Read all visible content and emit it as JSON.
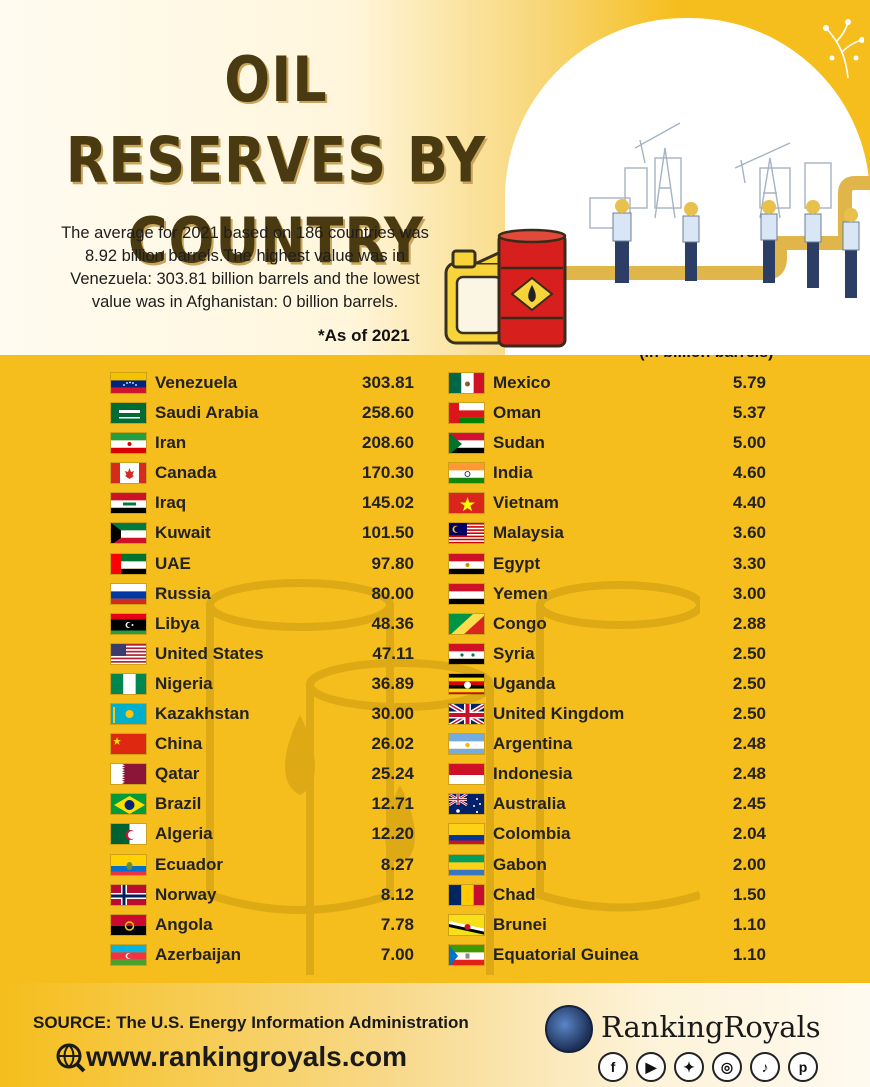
{
  "title": "OIL RESERVES BY COUNTRY",
  "description": "The average for 2021 based on 186 countries was 8.92 billion barrels.The highest value was in Venezuela: 303.81 billion barrels and the lowest value was in Afghanistan: 0 billion barrels.",
  "as_of": "*As of 2021",
  "unit_note": "*(in billion barrels)",
  "left_rows": [
    {
      "name": "Venezuela",
      "value": "303.81",
      "flag": "venezuela-flag"
    },
    {
      "name": "Saudi Arabia",
      "value": "258.60",
      "flag": "saudi-arabia-flag"
    },
    {
      "name": "Iran",
      "value": "208.60",
      "flag": "iran-flag"
    },
    {
      "name": "Canada",
      "value": "170.30",
      "flag": "canada-flag"
    },
    {
      "name": "Iraq",
      "value": "145.02",
      "flag": "iraq-flag"
    },
    {
      "name": "Kuwait",
      "value": "101.50",
      "flag": "kuwait-flag"
    },
    {
      "name": "UAE",
      "value": "97.80",
      "flag": "uae-flag"
    },
    {
      "name": "Russia",
      "value": "80.00",
      "flag": "russia-flag"
    },
    {
      "name": "Libya",
      "value": "48.36",
      "flag": "libya-flag"
    },
    {
      "name": "United States",
      "value": "47.11",
      "flag": "united-states-flag"
    },
    {
      "name": "Nigeria",
      "value": "36.89",
      "flag": "nigeria-flag"
    },
    {
      "name": "Kazakhstan",
      "value": "30.00",
      "flag": "kazakhstan-flag"
    },
    {
      "name": "China",
      "value": "26.02",
      "flag": "china-flag"
    },
    {
      "name": "Qatar",
      "value": "25.24",
      "flag": "qatar-flag"
    },
    {
      "name": "Brazil",
      "value": "12.71",
      "flag": "brazil-flag"
    },
    {
      "name": "Algeria",
      "value": "12.20",
      "flag": "algeria-flag"
    },
    {
      "name": "Ecuador",
      "value": "8.27",
      "flag": "ecuador-flag"
    },
    {
      "name": "Norway",
      "value": "8.12",
      "flag": "norway-flag"
    },
    {
      "name": "Angola",
      "value": "7.78",
      "flag": "angola-flag"
    },
    {
      "name": "Azerbaijan",
      "value": "7.00",
      "flag": "azerbaijan-flag"
    }
  ],
  "right_rows": [
    {
      "name": "Mexico",
      "value": "5.79",
      "flag": "mexico-flag"
    },
    {
      "name": "Oman",
      "value": "5.37",
      "flag": "oman-flag"
    },
    {
      "name": "Sudan",
      "value": "5.00",
      "flag": "sudan-flag"
    },
    {
      "name": "India",
      "value": "4.60",
      "flag": "india-flag"
    },
    {
      "name": "Vietnam",
      "value": "4.40",
      "flag": "vietnam-flag"
    },
    {
      "name": "Malaysia",
      "value": "3.60",
      "flag": "malaysia-flag"
    },
    {
      "name": "Egypt",
      "value": "3.30",
      "flag": "egypt-flag"
    },
    {
      "name": "Yemen",
      "value": "3.00",
      "flag": "yemen-flag"
    },
    {
      "name": "Congo",
      "value": "2.88",
      "flag": "congo-flag"
    },
    {
      "name": "Syria",
      "value": "2.50",
      "flag": "syria-flag"
    },
    {
      "name": "Uganda",
      "value": "2.50",
      "flag": "uganda-flag"
    },
    {
      "name": "United Kingdom",
      "value": "2.50",
      "flag": "united-kingdom-flag"
    },
    {
      "name": "Argentina",
      "value": "2.48",
      "flag": "argentina-flag"
    },
    {
      "name": "Indonesia",
      "value": "2.48",
      "flag": "indonesia-flag"
    },
    {
      "name": "Australia",
      "value": "2.45",
      "flag": "australia-flag"
    },
    {
      "name": "Colombia",
      "value": "2.04",
      "flag": "colombia-flag"
    },
    {
      "name": "Gabon",
      "value": "2.00",
      "flag": "gabon-flag"
    },
    {
      "name": "Chad",
      "value": "1.50",
      "flag": "chad-flag"
    },
    {
      "name": "Brunei",
      "value": "1.10",
      "flag": "brunei-flag"
    },
    {
      "name": "Equatorial Guinea",
      "value": "1.10",
      "flag": "equatorial-guinea-flag"
    }
  ],
  "footer": {
    "source": "SOURCE: The U.S. Energy Information Administration",
    "website": "www.rankingroyals.com",
    "brand": "RankingRoyals",
    "socials": [
      "facebook-icon",
      "youtube-icon",
      "twitter-icon",
      "instagram-icon",
      "tiktok-icon",
      "pinterest-icon"
    ]
  },
  "colors": {
    "background": "#f5be1c",
    "title": "#4a3a12",
    "text": "#222222",
    "drum": "#d7201e"
  }
}
